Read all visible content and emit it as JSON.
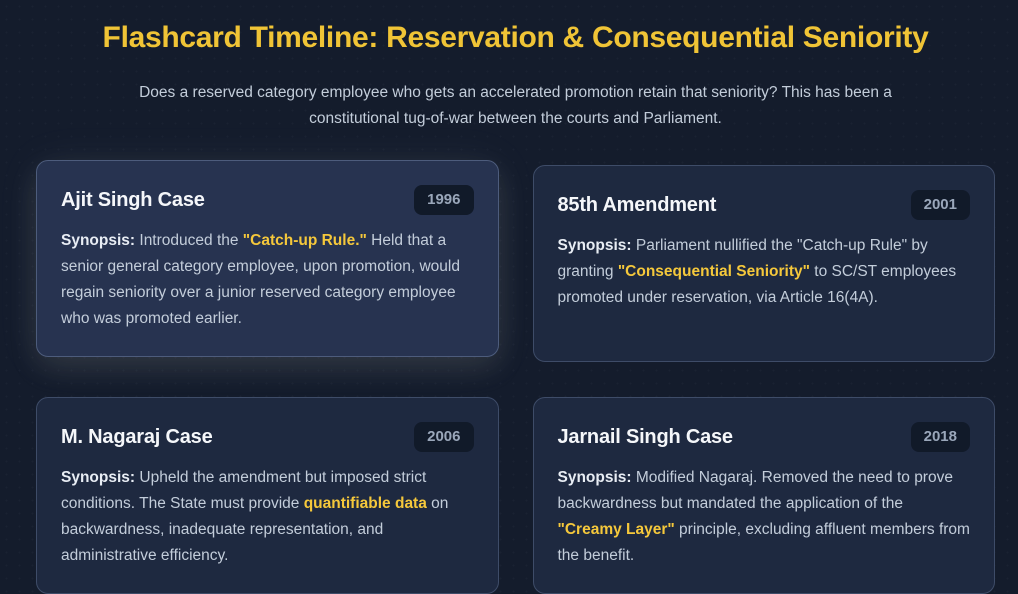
{
  "header": {
    "title": "Flashcard Timeline: Reservation & Consequential Seniority",
    "subtitle": "Does a reserved category employee who gets an accelerated promotion retain that seniority? This has been a constitutional tug-of-war between the courts and Parliament."
  },
  "colors": {
    "page_background": "#141c2c",
    "card_background": "#1e2940",
    "card_background_active": "#273350",
    "card_border": "#3e4c68",
    "title_gold": "#f0c436",
    "highlight_gold": "#f5c83b",
    "body_text": "#c3cdda",
    "card_title_text": "#f5f7fa",
    "badge_background": "#111a29",
    "badge_text": "#9aa7ba"
  },
  "cards": [
    {
      "title": "Ajit Singh Case",
      "year": "1996",
      "synopsis": {
        "label": "Synopsis:",
        "pre": " Introduced the ",
        "highlight": "\"Catch-up Rule.\"",
        "post": " Held that a senior general category employee, upon promotion, would regain seniority over a junior reserved category employee who was promoted earlier."
      }
    },
    {
      "title": "85th Amendment",
      "year": "2001",
      "synopsis": {
        "label": "Synopsis:",
        "pre": " Parliament nullified the \"Catch-up Rule\" by granting ",
        "highlight": "\"Consequential Seniority\"",
        "post": " to SC/ST employees promoted under reservation, via Article 16(4A)."
      }
    },
    {
      "title": "M. Nagaraj Case",
      "year": "2006",
      "synopsis": {
        "label": "Synopsis:",
        "pre": " Upheld the amendment but imposed strict conditions. The State must provide ",
        "highlight": "quantifiable data",
        "post": " on backwardness, inadequate representation, and administrative efficiency."
      }
    },
    {
      "title": "Jarnail Singh Case",
      "year": "2018",
      "synopsis": {
        "label": "Synopsis:",
        "pre": " Modified Nagaraj. Removed the need to prove backwardness but mandated the application of the ",
        "highlight": "\"Creamy Layer\"",
        "post": " principle, excluding affluent members from the benefit."
      }
    }
  ]
}
